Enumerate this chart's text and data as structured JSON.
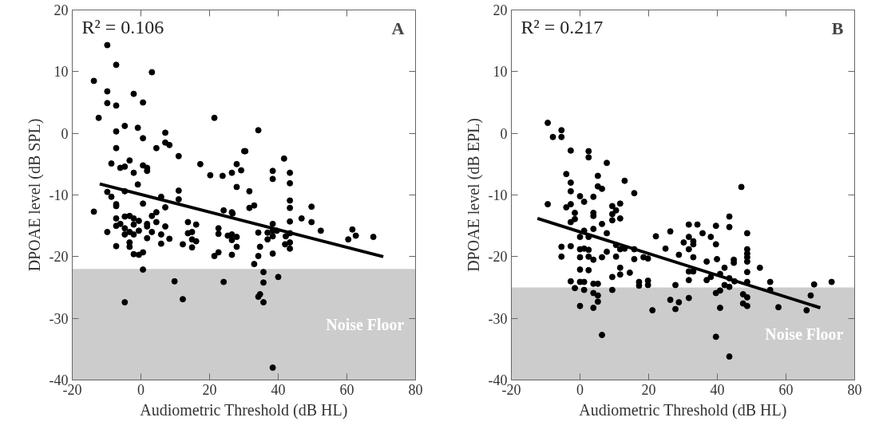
{
  "chart_data": [
    {
      "type": "scatter",
      "title": "A",
      "xlabel": "Audiometric Threshold (dB HL)",
      "ylabel": "DPOAE level (dB SPL)",
      "annotations": [
        "R² = 0.106"
      ],
      "xlim": [
        -20,
        80
      ],
      "ylim": [
        -40,
        20
      ],
      "xticks": [
        -20,
        0,
        20,
        40,
        60,
        80
      ],
      "yticks": [
        -40,
        -30,
        -20,
        -10,
        0,
        10,
        20
      ],
      "grid": false,
      "bands": [
        {
          "axis": "y",
          "from": -40,
          "to": -22,
          "label": "Noise Floor",
          "color": "#cccccc"
        }
      ],
      "series": [
        {
          "marker": "circle",
          "color": "#000000",
          "x": [
            -9.8,
            -7.2,
            3.2,
            -13.7,
            -9.8,
            -2.1,
            -9.8,
            -7.2,
            0.6,
            -12.3,
            21.4,
            -4.7,
            -0.9,
            -7.2,
            7.1,
            0.6,
            7.1,
            8.3,
            -7.2,
            4.5,
            11,
            30.1,
            -8.6,
            -3.3,
            -6,
            -4.7,
            0.6,
            1.8,
            1.8,
            -2.1,
            17.3,
            20.2,
            23.8,
            26.5,
            27.9,
            29.2,
            -0.9,
            27.9,
            11,
            -9.8,
            -8.6,
            -4.7,
            5.9,
            11,
            -7.2,
            0.6,
            -13.7,
            -7.2,
            7.1,
            24.1,
            26.5,
            -7.2,
            -4.7,
            -3.3,
            -2.1,
            -0.6,
            3.2,
            4.5,
            -7.2,
            -6,
            -4.7,
            -2.1,
            1.8,
            4.5,
            1.8,
            7.1,
            13.7,
            16.1,
            -9.8,
            -4.7,
            -3.3,
            -2.1,
            -0.6,
            3.2,
            5.9,
            13.7,
            14.9,
            22.6,
            22.6,
            25.3,
            26.5,
            27.9,
            26.5,
            1.8,
            8.3,
            14.9,
            16.1,
            -7.2,
            -3.3,
            -3.3,
            5.9,
            12.2,
            14.9,
            27.9,
            -2.1,
            -0.6,
            0.6,
            21.4,
            22.6,
            26.5,
            0.6,
            9.8,
            24.1,
            12.2,
            -4.7,
            34.2,
            30.4,
            41.7,
            38.4,
            38.4,
            43.4,
            43.4,
            31.6,
            43.4,
            43.4,
            31.6,
            33,
            49.7,
            26.7,
            46.8,
            49.7,
            43.4,
            38.4,
            52.4,
            34.2,
            36.9,
            38.4,
            39.6,
            38.4,
            36.9,
            42.2,
            43.4,
            61.6,
            62.6,
            60.4,
            67.7,
            34.7,
            42,
            43.4,
            43.4,
            34.2,
            38.4,
            33,
            35.7,
            35.7,
            40,
            34.7,
            34.2,
            35.7,
            38.4
          ],
          "values": [
            14.3,
            11.1,
            9.9,
            8.5,
            6.8,
            6.4,
            4.9,
            4.5,
            5,
            2.5,
            2.5,
            1.2,
            0.9,
            0.3,
            0.1,
            -0.8,
            -1.5,
            -1.9,
            -2.4,
            -2.4,
            -3.7,
            -2.9,
            -4.9,
            -4.4,
            -5.6,
            -5.4,
            -5.2,
            -5.6,
            -6.1,
            -6.4,
            -5,
            -6.8,
            -6.9,
            -6.4,
            -5,
            -6,
            -8.3,
            -8.7,
            -9.3,
            -9.5,
            -10.3,
            -9.4,
            -10.3,
            -10.7,
            -11.5,
            -11.4,
            -12.7,
            -11.8,
            -12,
            -12.5,
            -12.8,
            -13.8,
            -13.5,
            -13.4,
            -13.8,
            -14.2,
            -13.4,
            -12.8,
            -15,
            -14.7,
            -15.4,
            -14.8,
            -14.7,
            -14.4,
            -15.1,
            -15.1,
            -14.4,
            -14.8,
            -16,
            -16.4,
            -16,
            -16.4,
            -15.8,
            -16,
            -16.4,
            -16.2,
            -16,
            -15.4,
            -16.3,
            -16.6,
            -16.4,
            -16.8,
            -17.3,
            -17,
            -17.1,
            -17.2,
            -17.5,
            -18.3,
            -17.7,
            -18.4,
            -17.9,
            -18,
            -18.5,
            -18.4,
            -19.6,
            -19.7,
            -19.3,
            -19.9,
            -19.3,
            -19.7,
            -22.1,
            -24,
            -24.1,
            -26.9,
            -27.4,
            0.5,
            -2.9,
            -4.1,
            -6.1,
            -7.4,
            -6.4,
            -8.1,
            -9.4,
            -10.9,
            -12.1,
            -12.1,
            -11.7,
            -11.9,
            -13,
            -13.8,
            -14.4,
            -14.3,
            -14.7,
            -15.8,
            -16.1,
            -16.1,
            -15.8,
            -15.8,
            -16.7,
            -17.2,
            -16.7,
            -16.2,
            -15.6,
            -16.6,
            -17.2,
            -16.8,
            -18.4,
            -18,
            -17.7,
            -18.7,
            -19.9,
            -19.5,
            -21.2,
            -22.5,
            -24.2,
            -23.3,
            -26.1,
            -26.5,
            -27.4,
            -38
          ]
        },
        {
          "type": "line",
          "color": "#000000",
          "x": [
            -12,
            70.6
          ],
          "values": [
            -8.2,
            -20
          ]
        }
      ]
    },
    {
      "type": "scatter",
      "title": "B",
      "xlabel": "Audiometric Threshold (dB HL)",
      "ylabel": "DPOAE level (dB EPL)",
      "annotations": [
        "R² = 0.217"
      ],
      "xlim": [
        -20,
        80
      ],
      "ylim": [
        -40,
        20
      ],
      "xticks": [
        -20,
        0,
        20,
        40,
        60,
        80
      ],
      "yticks": [
        -40,
        -30,
        -20,
        -10,
        0,
        10,
        20
      ],
      "grid": false,
      "bands": [
        {
          "axis": "y",
          "from": -40,
          "to": -25,
          "label": "Noise Floor",
          "color": "#cccccc"
        }
      ],
      "series": [
        {
          "marker": "circle",
          "color": "#000000",
          "x": [
            -9.4,
            -7.9,
            -5.4,
            -5.4,
            -2.7,
            2.5,
            2.5,
            7.8,
            -4,
            -2.7,
            5.2,
            5.2,
            6.4,
            13,
            -2.7,
            0,
            3.9,
            15.8,
            -9.4,
            -2.7,
            -4,
            1.2,
            -1.5,
            -1.5,
            -2.7,
            3.9,
            3.9,
            9.4,
            10.5,
            11.7,
            9.4,
            9.4,
            11.7,
            6.4,
            1.2,
            3.9,
            7.8,
            0,
            2.5,
            26.3,
            22.1,
            -5.4,
            -2.7,
            0,
            1.2,
            2.5,
            7.8,
            10.5,
            11.7,
            13,
            15.8,
            24.9,
            -5.4,
            0,
            2.5,
            3.9,
            6.4,
            10.5,
            15.8,
            18.5,
            19.8,
            0,
            2.5,
            11.7,
            11.7,
            9.4,
            14.5,
            -2.7,
            0,
            1.2,
            3.9,
            5.2,
            17.2,
            19.8,
            17.2,
            19.8,
            -1.5,
            1.2,
            3.9,
            5.2,
            5.2,
            9.4,
            0,
            3.9,
            21.1,
            6.4,
            47,
            43.5,
            43.5,
            31.7,
            34.2,
            39.6,
            35.7,
            38.1,
            31.7,
            33,
            30.2,
            33,
            39.6,
            31.7,
            48.7,
            48.7,
            48.7,
            48.7,
            48.7,
            48.7,
            48.7,
            44.8,
            44.8,
            28.8,
            33,
            36.9,
            39.9,
            52.4,
            42.1,
            31.7,
            33,
            40.8,
            38.1,
            36.9,
            31.7,
            43.5,
            45,
            42.1,
            43.5,
            55.4,
            55.4,
            68.2,
            73.3,
            27.8,
            39.6,
            40.8,
            47.5,
            48.7,
            47.5,
            48.7,
            26.3,
            28.8,
            31.7,
            27.8,
            40.8,
            57.8,
            66,
            67.2,
            39.6,
            43.5
          ],
          "values": [
            1.7,
            -0.6,
            0.5,
            -0.6,
            -2.8,
            -2.9,
            -3.9,
            -4.8,
            -6.6,
            -8,
            -6.9,
            -8.6,
            -9,
            -7.7,
            -9.4,
            -10.2,
            -10.3,
            -9.7,
            -11.5,
            -11.5,
            -12,
            -11.1,
            -12.9,
            -13.9,
            -14.4,
            -12.9,
            -13.4,
            -11.8,
            -12.5,
            -11.4,
            -13.1,
            -14.1,
            -13.8,
            -14.7,
            -15.8,
            -15.5,
            -16.2,
            -16.8,
            -16.8,
            -15.9,
            -16.7,
            -18.4,
            -18.3,
            -18.8,
            -18.7,
            -18.9,
            -19.2,
            -18.1,
            -18.8,
            -18.7,
            -18.8,
            -18.7,
            -20,
            -20.1,
            -20,
            -20.5,
            -20.1,
            -20,
            -20.4,
            -20.1,
            -20.3,
            -22.1,
            -22.2,
            -21.8,
            -22.9,
            -23.3,
            -22.6,
            -24,
            -24.1,
            -24.1,
            -24.4,
            -24.4,
            -24.1,
            -23.9,
            -24.7,
            -24.6,
            -25.1,
            -25.4,
            -25.9,
            -26.3,
            -27.3,
            -25.4,
            -28,
            -28.3,
            -28.7,
            -32.7,
            -8.7,
            -13.5,
            -15.2,
            -14.8,
            -14.8,
            -15,
            -16.2,
            -16.8,
            -16.8,
            -17.5,
            -17.7,
            -18,
            -18,
            -18.8,
            -16.2,
            -18.8,
            -19.5,
            -20.1,
            -20.8,
            -22.5,
            -24.1,
            -20.5,
            -21,
            -19.7,
            -20.1,
            -20.8,
            -20.4,
            -21.8,
            -21.8,
            -22.4,
            -22.4,
            -22.8,
            -23.3,
            -23.8,
            -23.8,
            -23.5,
            -24,
            -24.6,
            -24.9,
            -24.1,
            -25.4,
            -24.5,
            -24.1,
            -24.6,
            -25.9,
            -25.5,
            -26.1,
            -26.6,
            -27.6,
            -28,
            -27,
            -27.4,
            -26.7,
            -28.5,
            -28.3,
            -28.2,
            -28.7,
            -26.3,
            -33,
            -36.2
          ]
        },
        {
          "type": "line",
          "color": "#000000",
          "x": [
            -12.4,
            70
          ],
          "values": [
            -13.8,
            -28.3
          ]
        }
      ]
    }
  ]
}
